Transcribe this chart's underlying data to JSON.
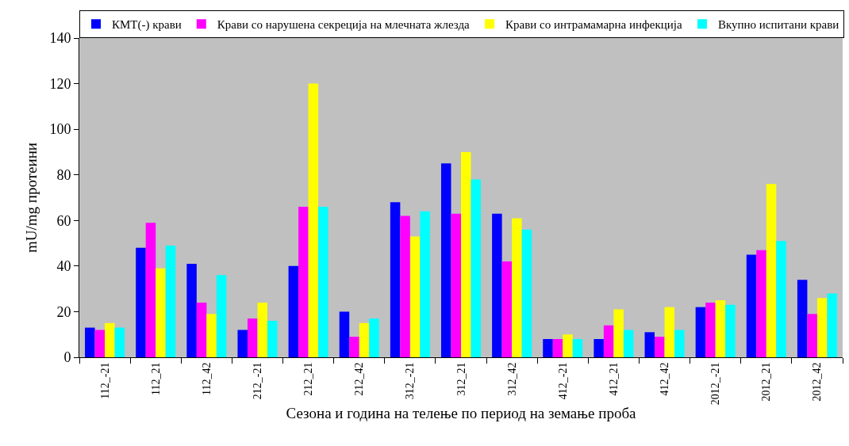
{
  "chart_data": {
    "type": "bar",
    "xlabel": "Сезона и година на телење по период на земање проба",
    "ylabel": "mU/mg протеини",
    "categories": [
      "112_-21",
      "112_21",
      "112_42",
      "212_-21",
      "212_21",
      "212_42",
      "312_-21",
      "312_21",
      "312_42",
      "412_-21",
      "412_21",
      "412_42",
      "2012_-21",
      "2012_21",
      "2012_42"
    ],
    "series": [
      {
        "name": "КМТ(-) крави",
        "color": "#0000ff",
        "values": [
          13,
          48,
          41,
          12,
          40,
          20,
          68,
          85,
          63,
          8,
          8,
          11,
          22,
          45,
          34
        ]
      },
      {
        "name": "Крави со нарушена секреција на млечната жлезда",
        "color": "#ff00ff",
        "values": [
          12,
          59,
          24,
          17,
          66,
          9,
          62,
          63,
          42,
          8,
          14,
          9,
          24,
          47,
          19
        ]
      },
      {
        "name": "Крави со интрамамарна инфекција",
        "color": "#ffff00",
        "values": [
          15,
          39,
          19,
          24,
          120,
          15,
          53,
          90,
          61,
          10,
          21,
          22,
          25,
          76,
          26
        ]
      },
      {
        "name": "Вкупно испитани крави",
        "color": "#00ffff",
        "values": [
          13,
          49,
          36,
          16,
          66,
          17,
          64,
          78,
          56,
          8,
          12,
          12,
          23,
          51,
          28
        ]
      }
    ],
    "ylim": [
      0,
      140
    ],
    "yticks": [
      0,
      20,
      40,
      60,
      80,
      100,
      120,
      140
    ],
    "legend": "top"
  }
}
